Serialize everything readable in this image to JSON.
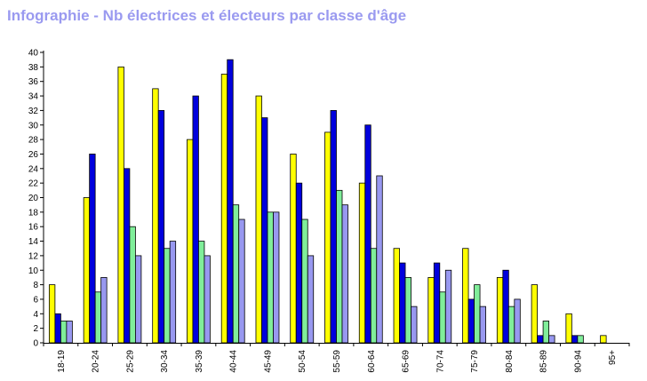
{
  "title": "Infographie - Nb électrices et électeurs par classe d'âge",
  "chart_data": {
    "type": "bar",
    "title": "Infographie - Nb électrices et électeurs par classe d'âge",
    "xlabel": "",
    "ylabel": "",
    "ylim": [
      0,
      40
    ],
    "yticks": [
      0,
      2,
      4,
      6,
      8,
      10,
      12,
      14,
      16,
      18,
      20,
      22,
      24,
      26,
      28,
      30,
      32,
      34,
      36,
      38,
      40
    ],
    "grid": false,
    "categories": [
      "18-19",
      "20-24",
      "25-29",
      "30-34",
      "35-39",
      "40-44",
      "45-49",
      "50-54",
      "55-59",
      "60-64",
      "65-69",
      "70-74",
      "75-79",
      "80-84",
      "85-89",
      "90-94",
      "95+"
    ],
    "series": [
      {
        "color": "#ffff00",
        "values": [
          8,
          20,
          38,
          35,
          28,
          37,
          34,
          26,
          29,
          22,
          13,
          9,
          13,
          9,
          8,
          4,
          1
        ]
      },
      {
        "color": "#0000dd",
        "values": [
          4,
          26,
          24,
          32,
          34,
          39,
          31,
          22,
          32,
          30,
          11,
          11,
          6,
          10,
          1,
          1,
          0
        ]
      },
      {
        "color": "#80ee9a",
        "values": [
          3,
          7,
          16,
          13,
          14,
          19,
          18,
          17,
          21,
          13,
          9,
          7,
          8,
          5,
          3,
          1,
          0
        ]
      },
      {
        "color": "#9898f0",
        "values": [
          3,
          9,
          12,
          14,
          12,
          17,
          18,
          12,
          19,
          23,
          5,
          10,
          5,
          6,
          1,
          0,
          0
        ]
      }
    ]
  }
}
